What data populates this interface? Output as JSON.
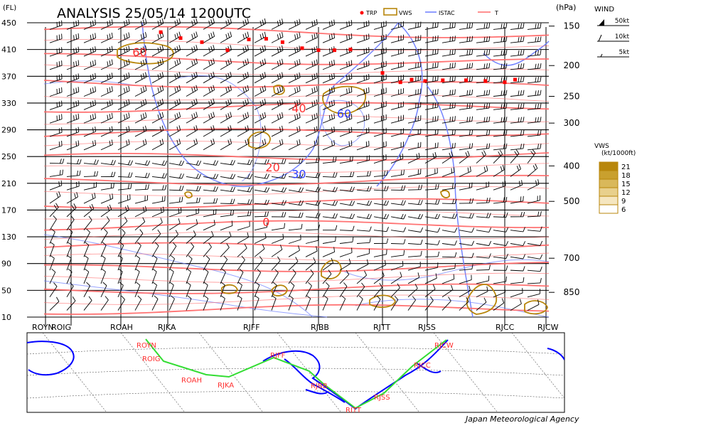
{
  "chart_data": {
    "type": "cross-section",
    "title": "ANALYSIS 25/05/14 1200UTC",
    "left_axis": {
      "unit": "(FL)",
      "ticks": [
        "450",
        "410",
        "370",
        "330",
        "290",
        "250",
        "210",
        "170",
        "130",
        "90",
        "50",
        "10"
      ]
    },
    "right_axis": {
      "unit": "(hPa)",
      "ticks": [
        {
          "label": "150",
          "fl": 445
        },
        {
          "label": "200",
          "fl": 386
        },
        {
          "label": "250",
          "fl": 340
        },
        {
          "label": "300",
          "fl": 300
        },
        {
          "label": "400",
          "fl": 236
        },
        {
          "label": "500",
          "fl": 183
        },
        {
          "label": "700",
          "fl": 98
        },
        {
          "label": "850",
          "fl": 47
        }
      ]
    },
    "stations": [
      "ROYN",
      "ROIG",
      "ROAH",
      "RJKA",
      "RJFF",
      "RJBB",
      "RJTT",
      "RJSS",
      "RJCC",
      "RJCW"
    ],
    "legend": {
      "trp": "TRP",
      "vws": "VWS",
      "istac": "ISTAC",
      "t": "T",
      "colors": {
        "trp": "#ff0000",
        "vws": "#b8860b",
        "istac": "#6b7cff",
        "t": "#ff6b6b"
      }
    },
    "wind_legend": {
      "title": "WIND",
      "items": [
        "50kt",
        "10kt",
        "5kt"
      ]
    },
    "vws_legend": {
      "title": "VWS",
      "unit": "(kt/1000ft)",
      "levels": [
        "21",
        "18",
        "15",
        "12",
        "9",
        "6"
      ]
    },
    "temperature_labels": [
      {
        "text": "60",
        "station_pos": 2.4,
        "fl": 400
      },
      {
        "text": "40",
        "station_pos": 4.7,
        "fl": 316
      },
      {
        "text": "20",
        "station_pos": 4.3,
        "fl": 228
      },
      {
        "text": "0",
        "station_pos": 4.2,
        "fl": 146
      }
    ],
    "istac_labels": [
      {
        "text": "60",
        "station_pos": 5.4,
        "fl": 308
      },
      {
        "text": "30",
        "station_pos": 4.7,
        "fl": 218
      }
    ],
    "tropopause_points": [
      {
        "pos": 2.85,
        "fl": 436
      },
      {
        "pos": 3.15,
        "fl": 427
      },
      {
        "pos": 3.4,
        "fl": 421
      },
      {
        "pos": 3.7,
        "fl": 409
      },
      {
        "pos": 3.95,
        "fl": 425
      },
      {
        "pos": 4.2,
        "fl": 426
      },
      {
        "pos": 4.45,
        "fl": 421
      },
      {
        "pos": 4.75,
        "fl": 412
      },
      {
        "pos": 5.0,
        "fl": 409
      },
      {
        "pos": 5.25,
        "fl": 409
      },
      {
        "pos": 5.5,
        "fl": 410
      },
      {
        "pos": 6.0,
        "fl": 375
      },
      {
        "pos": 6.4,
        "fl": 361
      },
      {
        "pos": 6.65,
        "fl": 365
      },
      {
        "pos": 6.95,
        "fl": 363
      },
      {
        "pos": 7.2,
        "fl": 364
      },
      {
        "pos": 7.5,
        "fl": 364
      },
      {
        "pos": 7.75,
        "fl": 363
      },
      {
        "pos": 8.0,
        "fl": 361
      },
      {
        "pos": 8.25,
        "fl": 365
      }
    ],
    "map_labels": [
      "ROYN",
      "ROIG",
      "ROAH",
      "RJKA",
      "RJFF",
      "RJBB",
      "RJTT",
      "RJSS",
      "RJCC",
      "RJCW"
    ],
    "credit": "Japan Meteorological Agency"
  }
}
